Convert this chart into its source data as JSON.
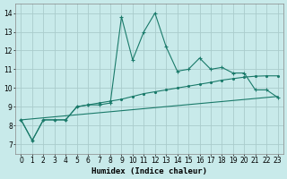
{
  "title": "",
  "xlabel": "Humidex (Indice chaleur)",
  "background_color": "#c8eaea",
  "grid_color": "#aacccc",
  "line_color": "#1a7a6a",
  "xlim": [
    -0.5,
    23.5
  ],
  "ylim": [
    6.5,
    14.5
  ],
  "xticks": [
    0,
    1,
    2,
    3,
    4,
    5,
    6,
    7,
    8,
    9,
    10,
    11,
    12,
    13,
    14,
    15,
    16,
    17,
    18,
    19,
    20,
    21,
    22,
    23
  ],
  "yticks": [
    7,
    8,
    9,
    10,
    11,
    12,
    13,
    14
  ],
  "series1_x": [
    0,
    1,
    2,
    3,
    4,
    5,
    6,
    7,
    8,
    9,
    10,
    11,
    12,
    13,
    14,
    15,
    16,
    17,
    18,
    19,
    20,
    21,
    22,
    23
  ],
  "series1_y": [
    8.3,
    7.2,
    8.3,
    8.3,
    8.3,
    9.0,
    9.1,
    9.1,
    9.2,
    13.8,
    11.5,
    13.0,
    14.0,
    12.2,
    10.9,
    11.0,
    11.6,
    11.0,
    11.1,
    10.8,
    10.8,
    9.9,
    9.9,
    9.5
  ],
  "series2_x": [
    0,
    1,
    2,
    3,
    4,
    5,
    6,
    7,
    8,
    9,
    10,
    11,
    12,
    13,
    14,
    15,
    16,
    17,
    18,
    19,
    20,
    21,
    22,
    23
  ],
  "series2_y": [
    8.3,
    7.2,
    8.3,
    8.3,
    8.3,
    9.0,
    9.1,
    9.2,
    9.3,
    9.4,
    9.55,
    9.7,
    9.8,
    9.9,
    10.0,
    10.1,
    10.2,
    10.3,
    10.42,
    10.5,
    10.58,
    10.63,
    10.65,
    10.65
  ],
  "series3_x": [
    0,
    23
  ],
  "series3_y": [
    8.3,
    9.55
  ]
}
